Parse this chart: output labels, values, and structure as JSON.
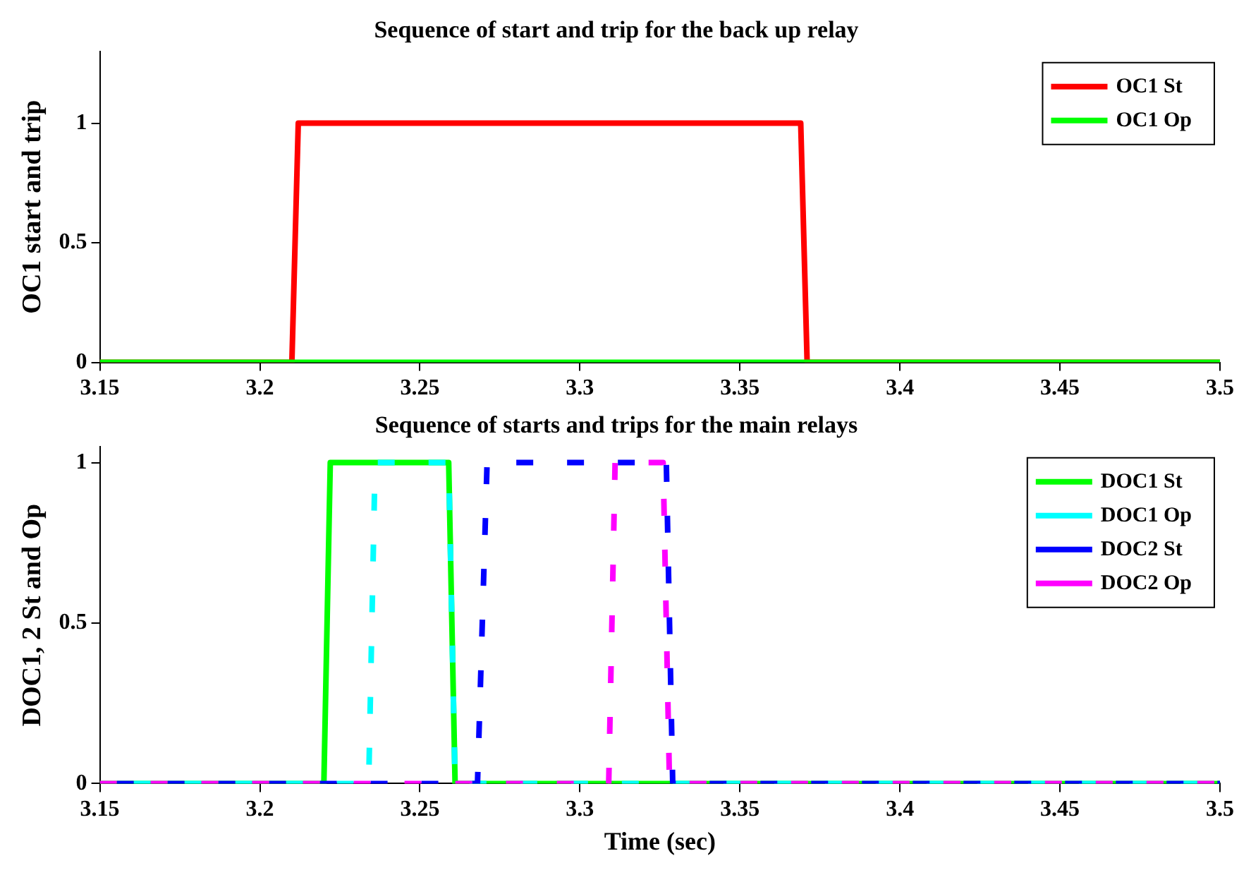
{
  "chart_data": [
    {
      "type": "line",
      "title": "Sequence of start and trip for the back up relay",
      "ylabel": "OC1 start and trip",
      "xlim": [
        3.15,
        3.5
      ],
      "xticks": [
        3.15,
        3.2,
        3.25,
        3.3,
        3.35,
        3.4,
        3.45,
        3.5
      ],
      "ylim": [
        0,
        1.3
      ],
      "yticks": [
        0,
        0.5,
        1
      ],
      "grid": false,
      "legend": "top right",
      "marker": "none",
      "series": [
        {
          "name": "OC1 St",
          "color": "#ff0000",
          "line_style": "solid",
          "x": [
            3.15,
            3.21,
            3.212,
            3.369,
            3.371,
            3.5
          ],
          "values": [
            0,
            0,
            1,
            1,
            0,
            0
          ]
        },
        {
          "name": "OC1 Op",
          "color": "#00ff00",
          "line_style": "solid",
          "x": [
            3.15,
            3.5
          ],
          "values": [
            0,
            0
          ]
        }
      ]
    },
    {
      "type": "line",
      "title": "Sequence of starts and trips for the main relays",
      "xlabel": "Time (sec)",
      "ylabel": "DOC1, 2 St and Op",
      "xlim": [
        3.15,
        3.5
      ],
      "xticks": [
        3.15,
        3.2,
        3.25,
        3.3,
        3.35,
        3.4,
        3.45,
        3.5
      ],
      "ylim": [
        0,
        1.05
      ],
      "yticks": [
        0,
        0.5,
        1
      ],
      "grid": false,
      "legend": "top right",
      "marker": "none",
      "series": [
        {
          "name": "DOC1 St",
          "color": "#00ff00",
          "line_style": "solid",
          "x": [
            3.15,
            3.22,
            3.222,
            3.259,
            3.261,
            3.5
          ],
          "values": [
            0,
            0,
            1,
            1,
            0,
            0
          ]
        },
        {
          "name": "DOC1 Op",
          "color": "#00ffff",
          "line_style": "dashed",
          "x": [
            3.15,
            3.234,
            3.236,
            3.259,
            3.261,
            3.5
          ],
          "values": [
            0,
            0,
            1,
            1,
            0,
            0
          ]
        },
        {
          "name": "DOC2 St",
          "color": "#0000ff",
          "line_style": "dashed",
          "x": [
            3.15,
            3.268,
            3.271,
            3.327,
            3.329,
            3.5
          ],
          "values": [
            0,
            0,
            1,
            1,
            0,
            0
          ]
        },
        {
          "name": "DOC2 Op",
          "color": "#ff00ff",
          "line_style": "dashed",
          "x": [
            3.15,
            3.309,
            3.311,
            3.326,
            3.328,
            3.5
          ],
          "values": [
            0,
            0,
            1,
            1,
            0,
            0
          ]
        }
      ]
    }
  ]
}
